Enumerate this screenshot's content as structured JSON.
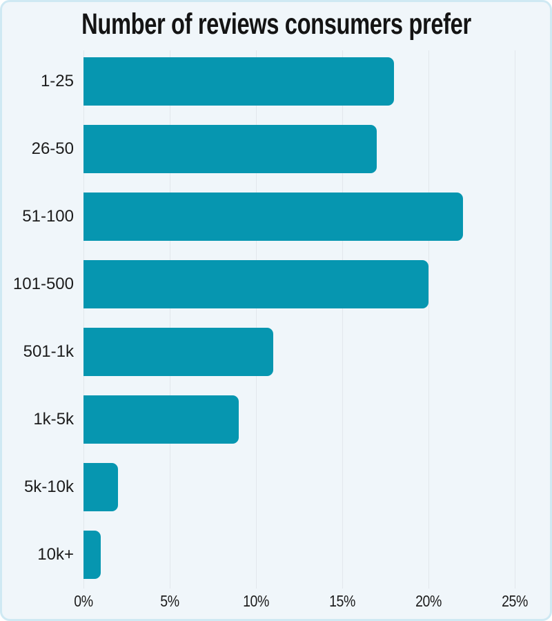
{
  "title": "Number of reviews consumers prefer",
  "chart_data": {
    "type": "bar",
    "orientation": "horizontal",
    "title": "Number of reviews consumers prefer",
    "categories": [
      "1-25",
      "26-50",
      "51-100",
      "101-500",
      "501-1k",
      "1k-5k",
      "5k-10k",
      "10k+"
    ],
    "values": [
      18,
      17,
      22,
      20,
      11,
      9,
      2,
      1
    ],
    "unit": "%",
    "xlabel": "",
    "ylabel": "",
    "x_ticks": [
      {
        "value": 0,
        "label": "0%"
      },
      {
        "value": 5,
        "label": "5%"
      },
      {
        "value": 10,
        "label": "10%"
      },
      {
        "value": 15,
        "label": "15%"
      },
      {
        "value": 20,
        "label": "20%"
      },
      {
        "value": 25,
        "label": "25%"
      }
    ],
    "xlim": [
      0,
      26
    ],
    "grid": true,
    "legend": false,
    "colors": {
      "bar": "#0696b0",
      "background": "#f0f6fa",
      "border": "#cfe9f3",
      "gridline": "#e2e7ec",
      "text": "#1c1c1c"
    }
  }
}
